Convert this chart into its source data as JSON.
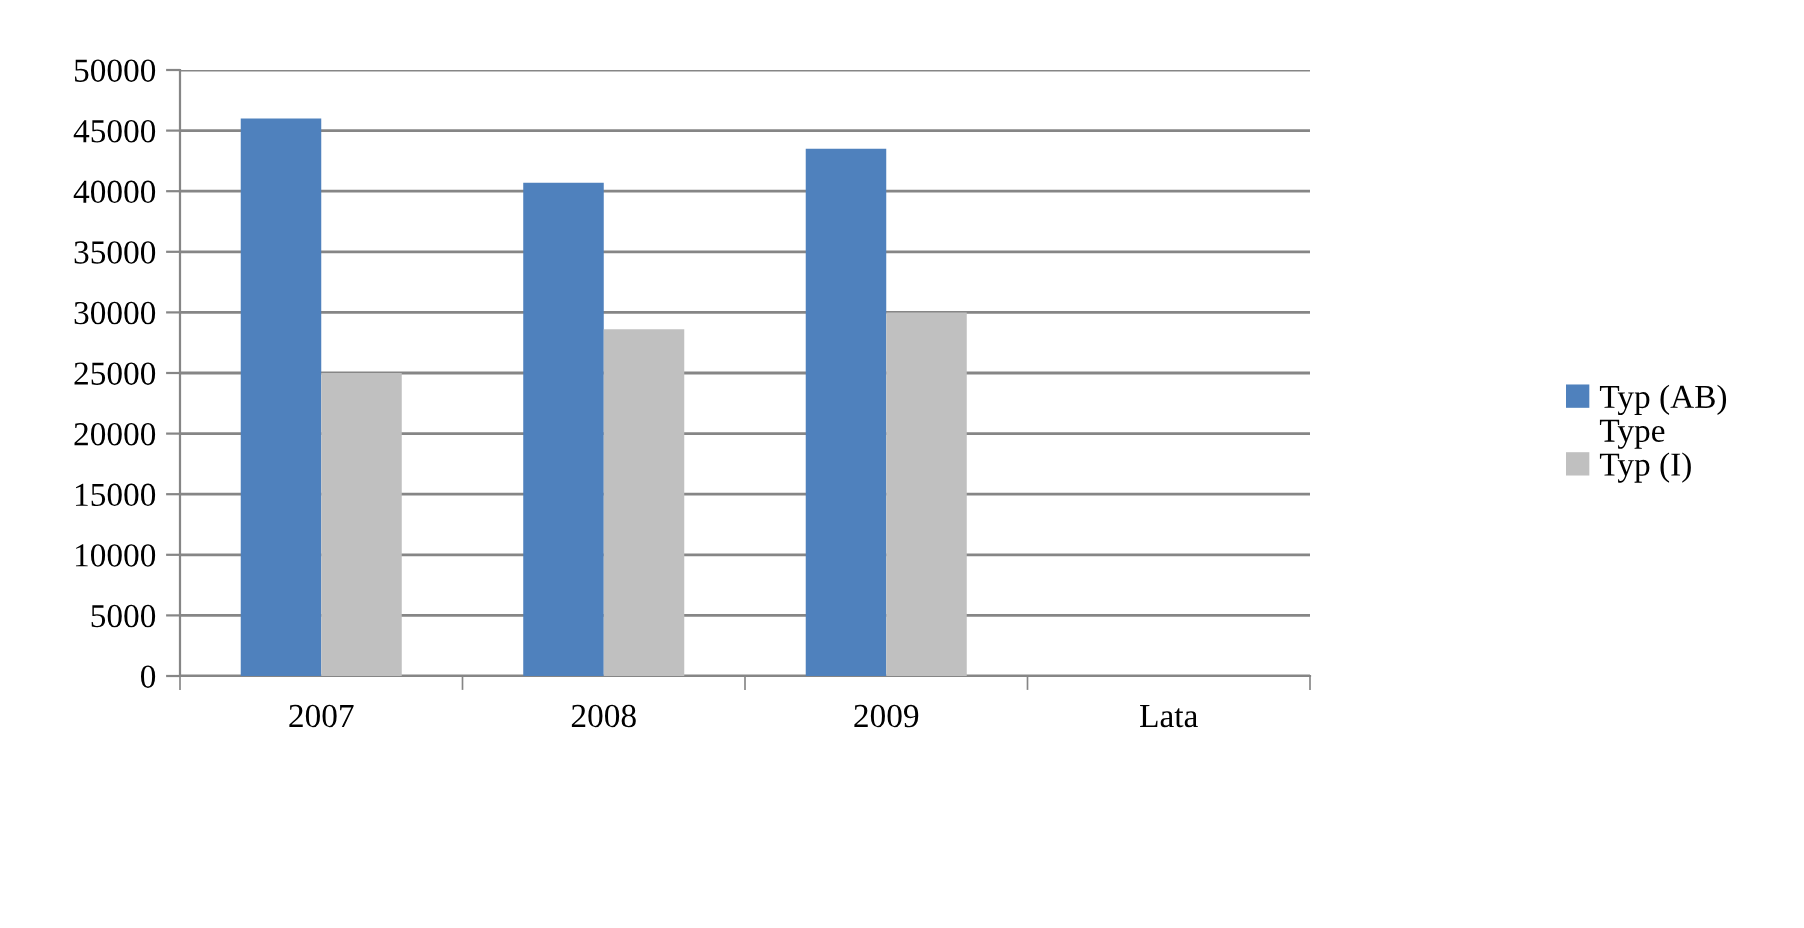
{
  "chart_data": {
    "type": "bar",
    "categories": [
      "2007",
      "2008",
      "2009",
      "Lata"
    ],
    "series": [
      {
        "name": "Typ (AB)",
        "color": "#4f81bd",
        "values": [
          46000,
          40700,
          43500,
          null
        ]
      },
      {
        "name": "Typ (I)",
        "color": "#c0c0c0",
        "values": [
          25000,
          28600,
          30000,
          null
        ]
      }
    ],
    "annotations": [
      "Type"
    ],
    "ylim": [
      0,
      50000
    ],
    "yticks": [
      0,
      5000,
      10000,
      15000,
      20000,
      25000,
      30000,
      35000,
      40000,
      45000,
      50000
    ],
    "grid": "y",
    "legend": "right"
  }
}
